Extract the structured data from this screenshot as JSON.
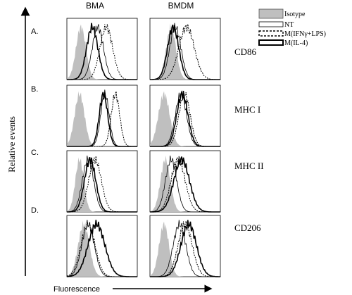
{
  "chart_data": {
    "type": "area",
    "title": "",
    "xlabel": "Fluorescence",
    "ylabel": "Relative events",
    "columns": [
      "BMA",
      "BMDM"
    ],
    "legend": {
      "placement": "top-right",
      "entries": [
        {
          "label": "Isotype",
          "style": "filled-gray"
        },
        {
          "label": "NT",
          "style": "thin-solid"
        },
        {
          "label": "M(IFNγ+LPS)",
          "style": "dashed"
        },
        {
          "label": "M(IL-4)",
          "style": "thick-solid"
        }
      ]
    },
    "colors": {
      "isotype_fill": "#bfbfbf",
      "line": "#000000"
    },
    "x_range": [
      0,
      1
    ],
    "y_range": [
      0,
      1
    ],
    "rows": [
      {
        "panel": "A.",
        "marker": "CD86",
        "BMA": {
          "Isotype": {
            "center": 0.2,
            "width": 0.07
          },
          "NT": {
            "center": 0.44,
            "width": 0.08
          },
          "M(IFNγ+LPS)": {
            "center": 0.56,
            "width": 0.09
          },
          "M(IL-4)": {
            "center": 0.36,
            "width": 0.08
          }
        },
        "BMDM": {
          "Isotype": {
            "center": 0.3,
            "width": 0.07
          },
          "NT": {
            "center": 0.36,
            "width": 0.08
          },
          "M(IFNγ+LPS)": {
            "center": 0.52,
            "width": 0.11
          },
          "M(IL-4)": {
            "center": 0.33,
            "width": 0.08
          }
        }
      },
      {
        "panel": "B.",
        "marker": "MHC I",
        "BMA": {
          "Isotype": {
            "center": 0.18,
            "width": 0.07
          },
          "NT": {
            "center": 0.54,
            "width": 0.06
          },
          "M(IFNγ+LPS)": {
            "center": 0.69,
            "width": 0.06
          },
          "M(IL-4)": {
            "center": 0.52,
            "width": 0.06
          }
        },
        "BMDM": {
          "Isotype": {
            "center": 0.2,
            "width": 0.08
          },
          "NT": {
            "center": 0.44,
            "width": 0.08
          },
          "M(IFNγ+LPS)": {
            "center": 0.49,
            "width": 0.08
          },
          "M(IL-4)": {
            "center": 0.46,
            "width": 0.08
          }
        }
      },
      {
        "panel": "C.",
        "marker": "MHC II",
        "BMA": {
          "Isotype": {
            "center": 0.18,
            "width": 0.06
          },
          "NT": {
            "center": 0.3,
            "width": 0.08
          },
          "M(IFNγ+LPS)": {
            "center": 0.4,
            "width": 0.09
          },
          "M(IL-4)": {
            "center": 0.33,
            "width": 0.08
          }
        },
        "BMDM": {
          "Isotype": {
            "center": 0.22,
            "width": 0.07
          },
          "NT": {
            "center": 0.3,
            "width": 0.08
          },
          "M(IFNγ+LPS)": {
            "center": 0.4,
            "width": 0.1
          },
          "M(IL-4)": {
            "center": 0.45,
            "width": 0.11
          }
        }
      },
      {
        "panel": "D.",
        "marker": "CD206",
        "BMA": {
          "Isotype": {
            "center": 0.24,
            "width": 0.08
          },
          "NT": {
            "center": 0.3,
            "width": 0.09
          },
          "M(IFNγ+LPS)": {
            "center": 0.3,
            "width": 0.1
          },
          "M(IL-4)": {
            "center": 0.42,
            "width": 0.12
          }
        },
        "BMDM": {
          "Isotype": {
            "center": 0.2,
            "width": 0.07
          },
          "NT": {
            "center": 0.42,
            "width": 0.09
          },
          "M(IFNγ+LPS)": {
            "center": 0.5,
            "width": 0.1
          },
          "M(IL-4)": {
            "center": 0.55,
            "width": 0.11
          }
        }
      }
    ]
  }
}
